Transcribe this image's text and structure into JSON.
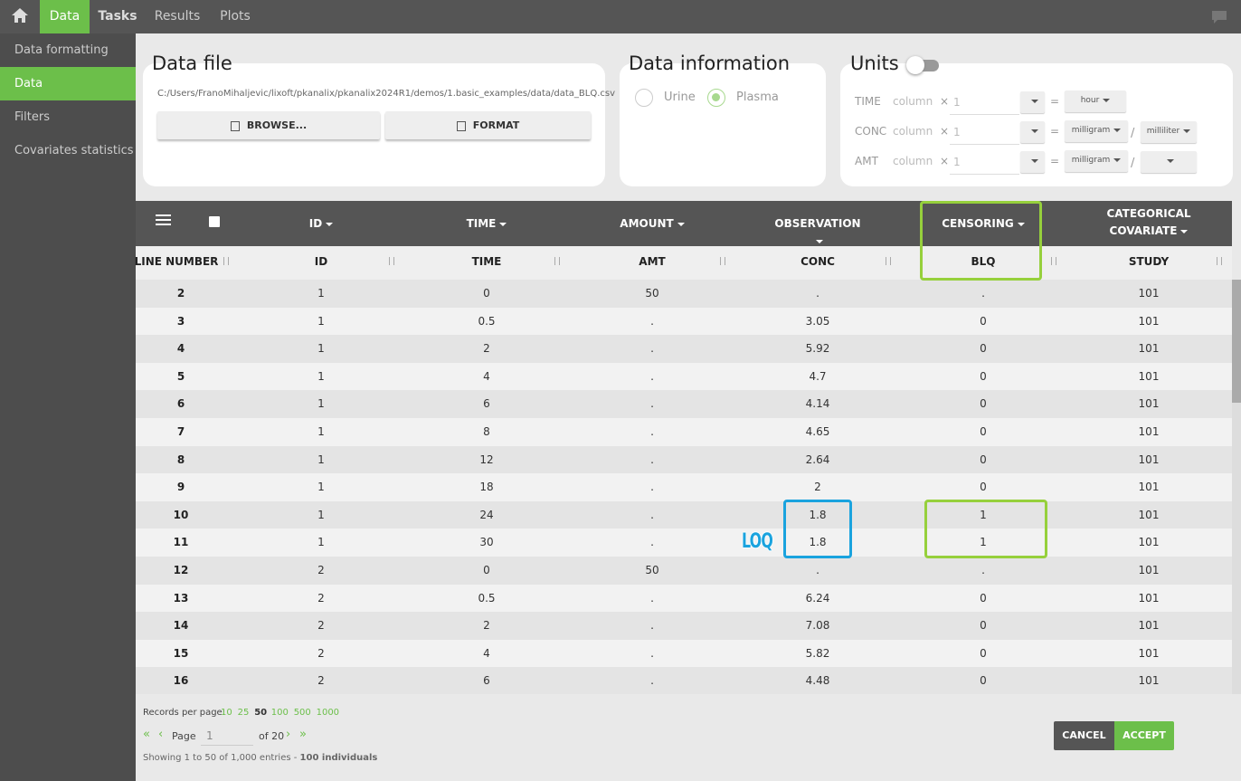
{
  "nav": {
    "tabs": [
      "Data",
      "Tasks",
      "Results",
      "Plots"
    ],
    "active_tab": 0
  },
  "sidebar": {
    "items": [
      "Data formatting",
      "Data",
      "Filters",
      "Covariates statistics"
    ],
    "active_item": 1
  },
  "data_file": {
    "title": "Data file",
    "path": "C:/Users/FranoMihaljevic/lixoft/pkanalix/pkanalix2024R1/demos/1.basic_examples/data/data_BLQ.csv",
    "buttons": [
      "BROWSE...",
      "FORMAT"
    ]
  },
  "data_information": {
    "title": "Data information",
    "options": [
      "Urine",
      "Plasma"
    ],
    "selected": 1
  },
  "units": {
    "title": "Units",
    "operators": {
      "times": "×",
      "equals": "=",
      "divide": "/"
    },
    "rows": [
      {
        "name": "TIME",
        "column": "column",
        "factor": "1",
        "unit": "hour"
      },
      {
        "name": "CONC",
        "column": "column",
        "factor": "1",
        "unit": "milligram",
        "per_unit": "milliliter"
      },
      {
        "name": "AMT",
        "column": "column",
        "factor": "1",
        "unit": "milligram"
      }
    ]
  },
  "table": {
    "column_types": [
      "ID",
      "TIME",
      "AMOUNT",
      "OBSERVATION",
      "CENSORING",
      "CATEGORICAL COVARIATE"
    ],
    "headers": [
      "LINE NUMBER",
      "ID",
      "TIME",
      "AMT",
      "CONC",
      "BLQ",
      "STUDY"
    ],
    "rows": [
      [
        2,
        1,
        0,
        50,
        ".",
        ".",
        101
      ],
      [
        3,
        1,
        0.5,
        ".",
        3.05,
        0,
        101
      ],
      [
        4,
        1,
        2,
        ".",
        5.92,
        0,
        101
      ],
      [
        5,
        1,
        4,
        ".",
        4.7,
        0,
        101
      ],
      [
        6,
        1,
        6,
        ".",
        4.14,
        0,
        101
      ],
      [
        7,
        1,
        8,
        ".",
        4.65,
        0,
        101
      ],
      [
        8,
        1,
        12,
        ".",
        2.64,
        0,
        101
      ],
      [
        9,
        1,
        18,
        ".",
        2,
        0,
        101
      ],
      [
        10,
        1,
        24,
        ".",
        1.8,
        1,
        101
      ],
      [
        11,
        1,
        30,
        ".",
        1.8,
        1,
        101
      ],
      [
        12,
        2,
        0,
        50,
        ".",
        ".",
        101
      ],
      [
        13,
        2,
        0.5,
        ".",
        6.24,
        0,
        101
      ],
      [
        14,
        2,
        2,
        ".",
        7.08,
        0,
        101
      ],
      [
        15,
        2,
        4,
        ".",
        5.82,
        0,
        101
      ],
      [
        16,
        2,
        6,
        ".",
        4.48,
        0,
        101
      ]
    ]
  },
  "pagination": {
    "records_label": "Records per page:",
    "page_sizes": [
      10,
      25,
      50,
      100,
      500,
      1000
    ],
    "selected_size": 2,
    "nav_icons": [
      "«",
      "‹",
      "›",
      "»"
    ],
    "page_label": "Page",
    "page": 1,
    "of_label": "of 20",
    "summary": "Showing 1 to 50 of 1,000 entries - ",
    "individuals": "100 individuals"
  },
  "buttons": [
    "CANCEL",
    "ACCEPT"
  ],
  "annotation": {
    "label": "LOQ"
  }
}
